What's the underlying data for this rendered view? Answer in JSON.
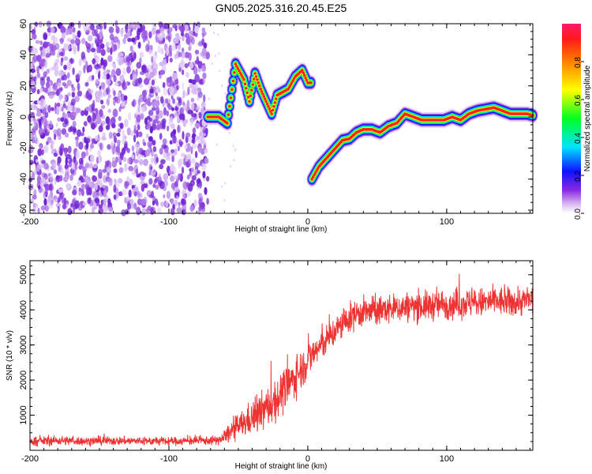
{
  "figure": {
    "title": "GN05.2025.316.20.45.E25"
  },
  "chart_data": [
    {
      "type": "heatmap",
      "name": "spectrogram",
      "xlabel": "Height of straight line (km)",
      "ylabel": "Frequency (Hz)",
      "xlim": [
        -200,
        162
      ],
      "ylim": [
        -62,
        60
      ],
      "xticks": [
        -200,
        -100,
        0,
        100
      ],
      "yticks": [
        -60,
        -40,
        -20,
        0,
        20,
        40,
        60
      ],
      "colorbar": {
        "label": "Normalized spectral amplitude",
        "range": [
          0,
          1
        ],
        "ticks": [
          0.0,
          0.2,
          0.4,
          0.6,
          0.8
        ],
        "tick_labels": [
          "0.0",
          "0.2",
          "0.4",
          "0.6",
          "0.8"
        ],
        "colormap": "rainbow (white → purple → blue → cyan → green → yellow → orange → red → pink)"
      },
      "noise_region": {
        "x_range": [
          -200,
          -72
        ],
        "freq_range": [
          -62,
          60
        ],
        "amplitude": "0.0-0.3"
      },
      "signal_track": [
        {
          "x": -72,
          "freq": 0
        },
        {
          "x": -64,
          "freq": 0
        },
        {
          "x": -58,
          "freq": -4
        },
        {
          "x": -52,
          "freq": 34
        },
        {
          "x": -46,
          "freq": 24
        },
        {
          "x": -42,
          "freq": 10
        },
        {
          "x": -38,
          "freq": 28
        },
        {
          "x": -34,
          "freq": 18
        },
        {
          "x": -30,
          "freq": 10
        },
        {
          "x": -26,
          "freq": 2
        },
        {
          "x": -22,
          "freq": 14
        },
        {
          "x": -18,
          "freq": 16
        },
        {
          "x": -14,
          "freq": 18
        },
        {
          "x": -9,
          "freq": 26
        },
        {
          "x": -4,
          "freq": 30
        },
        {
          "x": 0,
          "freq": 22
        },
        {
          "x": 3,
          "freq": -40
        },
        {
          "x": 8,
          "freq": -32
        },
        {
          "x": 12,
          "freq": -28
        },
        {
          "x": 16,
          "freq": -24
        },
        {
          "x": 20,
          "freq": -20
        },
        {
          "x": 25,
          "freq": -15
        },
        {
          "x": 30,
          "freq": -14
        },
        {
          "x": 35,
          "freq": -10
        },
        {
          "x": 40,
          "freq": -8
        },
        {
          "x": 46,
          "freq": -8
        },
        {
          "x": 52,
          "freq": -10
        },
        {
          "x": 58,
          "freq": -6
        },
        {
          "x": 64,
          "freq": -4
        },
        {
          "x": 70,
          "freq": 2
        },
        {
          "x": 76,
          "freq": 0
        },
        {
          "x": 82,
          "freq": -2
        },
        {
          "x": 90,
          "freq": -2
        },
        {
          "x": 98,
          "freq": -2
        },
        {
          "x": 104,
          "freq": 0
        },
        {
          "x": 110,
          "freq": -2
        },
        {
          "x": 116,
          "freq": 2
        },
        {
          "x": 122,
          "freq": 4
        },
        {
          "x": 128,
          "freq": 5
        },
        {
          "x": 134,
          "freq": 6
        },
        {
          "x": 140,
          "freq": 4
        },
        {
          "x": 146,
          "freq": 2
        },
        {
          "x": 152,
          "freq": 2
        },
        {
          "x": 158,
          "freq": 2
        },
        {
          "x": 162,
          "freq": 1
        }
      ]
    },
    {
      "type": "line",
      "name": "snr",
      "xlabel": "Height of straight line (km)",
      "ylabel": "SNR (10 * v/v)",
      "xlim": [
        -200,
        162
      ],
      "ylim": [
        0,
        5400
      ],
      "xticks": [
        -200,
        -100,
        0,
        100
      ],
      "yticks": [
        1000,
        2000,
        3000,
        4000,
        5000
      ],
      "color": "#ee3333",
      "series": [
        {
          "x": [
            -200,
            -180,
            -160,
            -140,
            -120,
            -100,
            -80,
            -70,
            -62,
            -55,
            -45,
            -35,
            -25,
            -15,
            -5,
            5,
            15,
            25,
            35,
            45,
            55,
            65,
            75,
            85,
            95,
            105,
            115,
            125,
            135,
            145,
            155,
            162
          ],
          "values": [
            250,
            280,
            260,
            270,
            265,
            255,
            270,
            275,
            300,
            550,
            800,
            1050,
            1350,
            1800,
            2300,
            2800,
            3200,
            3600,
            3900,
            3950,
            4000,
            4050,
            4100,
            4100,
            4150,
            4150,
            4200,
            4200,
            4250,
            4200,
            4250,
            4300
          ],
          "spread": [
            100,
            110,
            100,
            100,
            100,
            100,
            100,
            100,
            120,
            250,
            350,
            450,
            500,
            500,
            450,
            400,
            350,
            350,
            350,
            350,
            350,
            350,
            350,
            350,
            350,
            350,
            350,
            350,
            350,
            350,
            350,
            350
          ]
        }
      ]
    }
  ]
}
